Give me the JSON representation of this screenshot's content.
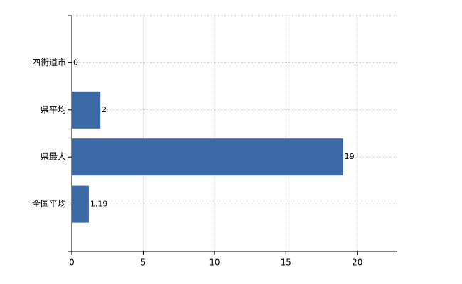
{
  "chart_data": {
    "type": "bar",
    "orientation": "horizontal",
    "categories": [
      "四街道市",
      "県平均",
      "県最大",
      "全国平均"
    ],
    "values": [
      0,
      2,
      19,
      1.19
    ],
    "color": "#3b69a6",
    "xlim": [
      0,
      22.8
    ],
    "xticks": [
      0,
      5,
      10,
      15,
      20
    ],
    "grid": true
  }
}
